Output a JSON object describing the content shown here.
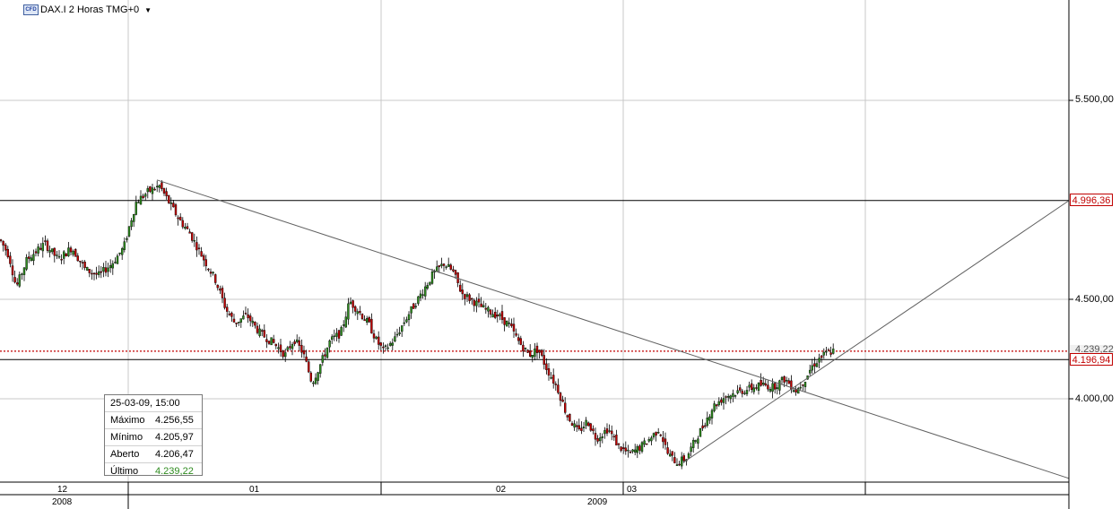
{
  "header": {
    "cfd_badge": "CFD",
    "instrument": "DAX.I 2 Horas TMG+0",
    "caret": "▼"
  },
  "y_axis": {
    "ticks": [
      {
        "value": 5500,
        "label": "5.500,00"
      },
      {
        "value": 4500,
        "label": "4.500,00"
      },
      {
        "value": 4000,
        "label": "4.000,00"
      }
    ],
    "tag_gray": "4.239,22",
    "tag_upper": "4.996,36",
    "tag_lower": "4.196,94"
  },
  "x_axis": {
    "months": [
      "12",
      "01",
      "02",
      "03"
    ],
    "years": [
      "2008",
      "2009"
    ]
  },
  "info_panel": {
    "date": "25-03-09, 15:00",
    "rows": [
      {
        "key": "Máximo",
        "value": "4.256,55"
      },
      {
        "key": "Mínimo",
        "value": "4.205,97"
      },
      {
        "key": "Aberto",
        "value": "4.206,47"
      },
      {
        "key": "Último",
        "value": "4.239,22"
      }
    ]
  },
  "colors": {
    "up_candle": "#2e8b1f",
    "down_candle": "#c00000",
    "grid": "#c8c8c8",
    "current_price_line": "#c00000"
  },
  "chart_data": {
    "type": "candlestick",
    "title": "DAX.I 2 Horas TMG+0",
    "ylim": [
      3680,
      6000
    ],
    "horizontal_lines": [
      4996.36,
      4196.94
    ],
    "current_price": 4239.22,
    "path": [
      [
        0,
        4800
      ],
      [
        10,
        4720
      ],
      [
        18,
        4560
      ],
      [
        30,
        4700
      ],
      [
        50,
        4780
      ],
      [
        65,
        4700
      ],
      [
        80,
        4760
      ],
      [
        95,
        4650
      ],
      [
        110,
        4620
      ],
      [
        125,
        4680
      ],
      [
        138,
        4760
      ],
      [
        145,
        4880
      ],
      [
        152,
        4990
      ],
      [
        165,
        5040
      ],
      [
        178,
        5070
      ],
      [
        188,
        4990
      ],
      [
        200,
        4900
      ],
      [
        212,
        4830
      ],
      [
        225,
        4720
      ],
      [
        240,
        4600
      ],
      [
        252,
        4450
      ],
      [
        262,
        4380
      ],
      [
        275,
        4420
      ],
      [
        290,
        4330
      ],
      [
        305,
        4280
      ],
      [
        318,
        4220
      ],
      [
        328,
        4300
      ],
      [
        338,
        4230
      ],
      [
        348,
        4080
      ],
      [
        358,
        4180
      ],
      [
        368,
        4290
      ],
      [
        380,
        4330
      ],
      [
        390,
        4490
      ],
      [
        400,
        4440
      ],
      [
        412,
        4370
      ],
      [
        420,
        4290
      ],
      [
        428,
        4240
      ],
      [
        440,
        4300
      ],
      [
        455,
        4420
      ],
      [
        470,
        4530
      ],
      [
        482,
        4620
      ],
      [
        495,
        4680
      ],
      [
        505,
        4640
      ],
      [
        515,
        4530
      ],
      [
        528,
        4490
      ],
      [
        540,
        4450
      ],
      [
        555,
        4420
      ],
      [
        568,
        4370
      ],
      [
        578,
        4290
      ],
      [
        590,
        4220
      ],
      [
        600,
        4250
      ],
      [
        610,
        4150
      ],
      [
        622,
        4050
      ],
      [
        632,
        3920
      ],
      [
        645,
        3830
      ],
      [
        655,
        3890
      ],
      [
        665,
        3800
      ],
      [
        678,
        3850
      ],
      [
        690,
        3760
      ],
      [
        702,
        3720
      ],
      [
        715,
        3760
      ],
      [
        725,
        3800
      ],
      [
        735,
        3850
      ],
      [
        745,
        3720
      ],
      [
        755,
        3680
      ],
      [
        765,
        3700
      ],
      [
        775,
        3790
      ],
      [
        785,
        3870
      ],
      [
        795,
        3960
      ],
      [
        808,
        4010
      ],
      [
        820,
        4030
      ],
      [
        835,
        4050
      ],
      [
        850,
        4070
      ],
      [
        862,
        4060
      ],
      [
        875,
        4100
      ],
      [
        888,
        4040
      ],
      [
        898,
        4100
      ],
      [
        905,
        4160
      ],
      [
        913,
        4200
      ],
      [
        922,
        4230
      ],
      [
        930,
        4240
      ]
    ],
    "trendlines": [
      {
        "from": [
          175,
          5100
        ],
        "to": [
          1192,
          3600
        ]
      },
      {
        "from": [
          762,
          3680
        ],
        "to": [
          1192,
          4996
        ]
      }
    ]
  }
}
